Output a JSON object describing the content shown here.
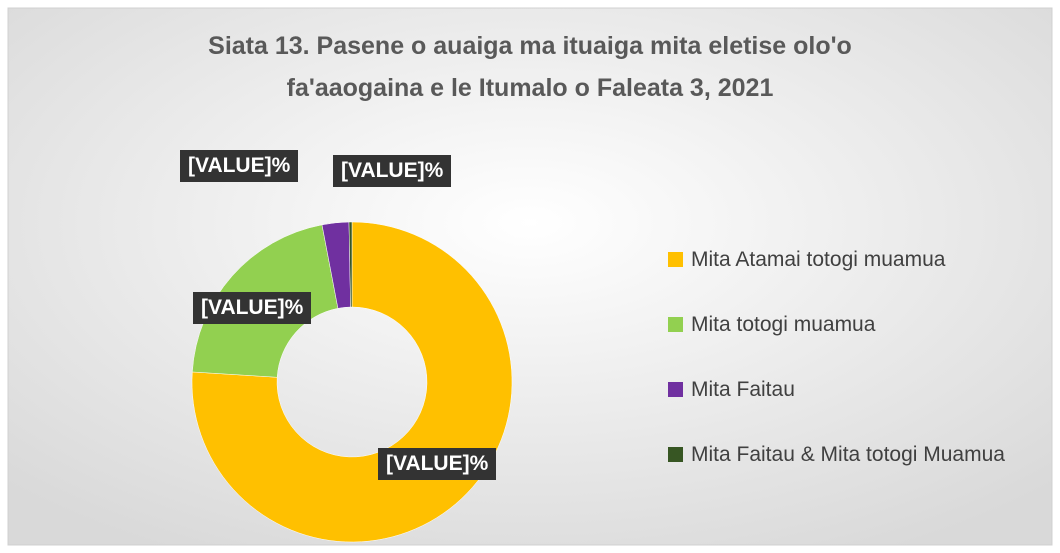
{
  "chart_data": {
    "type": "doughnut",
    "title": "Siata 13. Pasene o auaiga ma ituaiga mita eletise olo'o fa'aaogaina e le Itumalo o Faleata 3, 2021",
    "categories": [
      "Mita Atamai totogi muamua",
      "Mita totogi muamua",
      "Mita Faitau",
      "Mita Faitau & Mita totogi Muamua"
    ],
    "values": [
      76,
      21,
      2.7,
      0.3
    ],
    "value_labels": [
      "[VALUE]%",
      "[VALUE]%",
      "[VALUE]%",
      "[VALUE]%"
    ],
    "colors": [
      "#ffc000",
      "#92d050",
      "#7030a0",
      "#375623"
    ],
    "legend": "right"
  }
}
